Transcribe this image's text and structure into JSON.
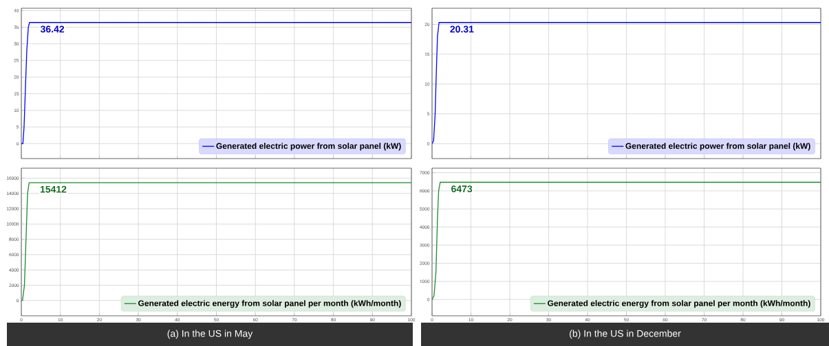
{
  "chart_data": [
    {
      "type": "line",
      "xlim": [
        0,
        100
      ],
      "xticks": [
        0,
        10,
        20,
        30,
        40,
        50,
        60,
        70,
        80,
        90,
        100
      ],
      "ylim": [
        -4.5,
        40.7
      ],
      "yticks": [
        0,
        5,
        10,
        15,
        20,
        25,
        30,
        35,
        40
      ],
      "tick_labels": "y",
      "grid": true,
      "legend": "bottom right",
      "series": [
        {
          "name": "Generated electric power from solar panel (kW)",
          "color": "#0000ff",
          "x": [
            0,
            0.4,
            0.7,
            1.0,
            1.4,
            1.8,
            2.1,
            100
          ],
          "values": [
            0,
            0,
            5,
            15,
            28,
            35,
            36.42,
            36.42
          ],
          "value_labels": [
            null,
            null,
            null,
            null,
            null,
            null,
            "36.42",
            null
          ]
        }
      ]
    },
    {
      "type": "line",
      "xlim": [
        0,
        100
      ],
      "xticks": [
        0,
        10,
        20,
        30,
        40,
        50,
        60,
        70,
        80,
        90,
        100
      ],
      "ylim": [
        -2000,
        17300
      ],
      "yticks": [
        0,
        2000,
        4000,
        6000,
        8000,
        10000,
        12000,
        14000,
        16000
      ],
      "grid": true,
      "legend": "bottom right",
      "series": [
        {
          "name": "Generated electric energy from solar panel per month (kWh/month)",
          "color": "#1a8a2a",
          "x": [
            0,
            0.3,
            0.8,
            1.2,
            1.6,
            2.0,
            100
          ],
          "values": [
            0,
            0,
            2000,
            8000,
            14000,
            15412,
            15412
          ],
          "value_labels": [
            null,
            null,
            null,
            null,
            null,
            "15412",
            null
          ]
        }
      ],
      "annotations": [
        "(a) In the US in May"
      ]
    },
    {
      "type": "line",
      "xlim": [
        0,
        100
      ],
      "xticks": [
        0,
        10,
        20,
        30,
        40,
        50,
        60,
        70,
        80,
        90,
        100
      ],
      "ylim": [
        -2.5,
        22.7
      ],
      "yticks": [
        0,
        5,
        10,
        15,
        20
      ],
      "tick_labels": "y",
      "grid": true,
      "legend": "bottom right",
      "series": [
        {
          "name": "Generated electric power from solar panel (kW)",
          "color": "#0000ff",
          "x": [
            0,
            0.4,
            0.8,
            1.1,
            1.4,
            1.8,
            100
          ],
          "values": [
            0,
            0.5,
            5,
            12,
            18,
            20.31,
            20.31
          ],
          "value_labels": [
            null,
            null,
            null,
            null,
            null,
            "20.31",
            null
          ]
        }
      ]
    },
    {
      "type": "line",
      "xlim": [
        0,
        100
      ],
      "xticks": [
        0,
        10,
        20,
        30,
        40,
        50,
        60,
        70,
        80,
        90,
        100
      ],
      "ylim": [
        -900,
        7250
      ],
      "yticks": [
        0,
        1000,
        2000,
        3000,
        4000,
        5000,
        6000,
        7000
      ],
      "grid": true,
      "legend": "bottom right",
      "series": [
        {
          "name": "Generated electric energy from solar panel per month (kWh/month)",
          "color": "#1a8a2a",
          "x": [
            0,
            0.5,
            1.0,
            1.4,
            1.7,
            2.1,
            100
          ],
          "values": [
            0,
            200,
            1500,
            4500,
            6000,
            6473,
            6473
          ],
          "value_labels": [
            null,
            null,
            null,
            null,
            null,
            "6473",
            null
          ]
        }
      ],
      "annotations": [
        "(b) In the US in December"
      ]
    }
  ]
}
